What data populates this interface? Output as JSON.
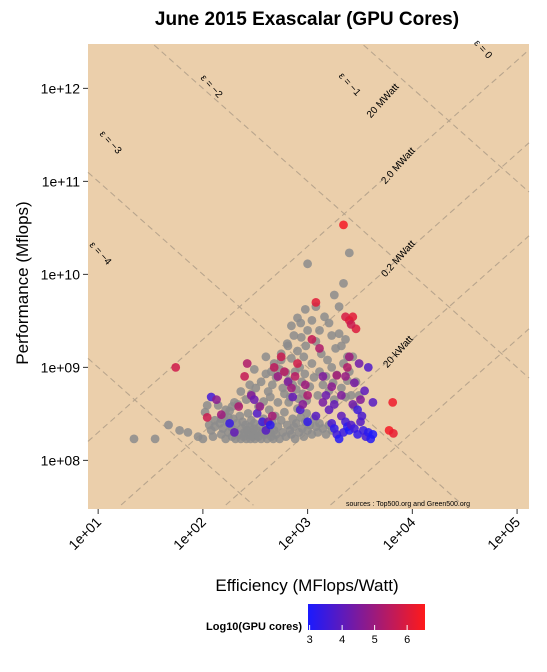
{
  "chart_data": {
    "type": "scatter",
    "title": "June 2015 Exascalar (GPU Cores)",
    "xlabel": "Efficiency (MFlops/Watt)",
    "ylabel": "Performance (Mflops)",
    "x_scale": "log10",
    "y_scale": "log10",
    "xlim": [
      8,
      130000
    ],
    "ylim": [
      30000000,
      3000000000000
    ],
    "x_ticks": [
      "1e+01",
      "1e+02",
      "1e+03",
      "1e+04",
      "1e+05"
    ],
    "x_tick_values": [
      10,
      100,
      1000,
      10000,
      100000
    ],
    "y_ticks": [
      "1e+08",
      "1e+09",
      "1e+10",
      "1e+11",
      "1e+12"
    ],
    "y_tick_values": [
      100000000,
      1000000000,
      10000000000,
      100000000000,
      1000000000000
    ],
    "grid": false,
    "background": "#ebcfab",
    "source_note": "sources : Top500.org and Green500.org",
    "exascalar_lines": [
      {
        "label": "ε = −4",
        "value": -4
      },
      {
        "label": "ε = −3",
        "value": -3
      },
      {
        "label": "ε = −2",
        "value": -2
      },
      {
        "label": "ε = −1",
        "value": -1
      },
      {
        "label": "ε = 0",
        "value": 0
      }
    ],
    "power_lines": [
      {
        "label": "20 kWatt",
        "watts": 20000
      },
      {
        "label": "0.2 MWatt",
        "watts": 200000
      },
      {
        "label": "2.0 MWatt",
        "watts": 2000000
      },
      {
        "label": "20 MWatt",
        "watts": 20000000
      }
    ],
    "legend": {
      "title": "Log10(GPU cores)",
      "position": "bottom",
      "ticks": [
        3,
        4,
        5,
        6
      ],
      "range": [
        2.95,
        6.55
      ],
      "low_color": "#1a1aff",
      "high_color": "#ff1a1a"
    },
    "no_gpu_color": "#8c8c8c",
    "points_no_gpu": [
      [
        22,
        170000000
      ],
      [
        35,
        170000000
      ],
      [
        47,
        240000000
      ],
      [
        60,
        210000000
      ],
      [
        72,
        200000000
      ],
      [
        90,
        180000000
      ],
      [
        100,
        170000000
      ],
      [
        105,
        330000000
      ],
      [
        110,
        390000000
      ],
      [
        115,
        240000000
      ],
      [
        120,
        210000000
      ],
      [
        125,
        180000000
      ],
      [
        130,
        270000000
      ],
      [
        140,
        390000000
      ],
      [
        145,
        250000000
      ],
      [
        150,
        190000000
      ],
      [
        155,
        220000000
      ],
      [
        160,
        300000000
      ],
      [
        165,
        170000000
      ],
      [
        170,
        260000000
      ],
      [
        175,
        200000000
      ],
      [
        180,
        340000000
      ],
      [
        185,
        230000000
      ],
      [
        190,
        180000000
      ],
      [
        195,
        280000000
      ],
      [
        200,
        210000000
      ],
      [
        205,
        170000000
      ],
      [
        210,
        250000000
      ],
      [
        215,
        400000000
      ],
      [
        220,
        190000000
      ],
      [
        225,
        300000000
      ],
      [
        230,
        170000000
      ],
      [
        235,
        220000000
      ],
      [
        240,
        260000000
      ],
      [
        245,
        180000000
      ],
      [
        250,
        200000000
      ],
      [
        255,
        240000000
      ],
      [
        260,
        170000000
      ],
      [
        265,
        210000000
      ],
      [
        270,
        320000000
      ],
      [
        275,
        190000000
      ],
      [
        280,
        230000000
      ],
      [
        285,
        170000000
      ],
      [
        290,
        270000000
      ],
      [
        295,
        200000000
      ],
      [
        300,
        180000000
      ],
      [
        305,
        220000000
      ],
      [
        310,
        250000000
      ],
      [
        315,
        170000000
      ],
      [
        320,
        190000000
      ],
      [
        330,
        210000000
      ],
      [
        340,
        180000000
      ],
      [
        350,
        230000000
      ],
      [
        360,
        170000000
      ],
      [
        370,
        200000000
      ],
      [
        380,
        280000000
      ],
      [
        390,
        190000000
      ],
      [
        400,
        240000000
      ],
      [
        410,
        170000000
      ],
      [
        420,
        220000000
      ],
      [
        430,
        350000000
      ],
      [
        440,
        200000000
      ],
      [
        450,
        180000000
      ],
      [
        460,
        260000000
      ],
      [
        470,
        170000000
      ],
      [
        480,
        210000000
      ],
      [
        490,
        300000000
      ],
      [
        500,
        190000000
      ],
      [
        520,
        230000000
      ],
      [
        540,
        170000000
      ],
      [
        560,
        270000000
      ],
      [
        580,
        200000000
      ],
      [
        600,
        330000000
      ],
      [
        620,
        180000000
      ],
      [
        640,
        240000000
      ],
      [
        660,
        420000000
      ],
      [
        680,
        210000000
      ],
      [
        700,
        190000000
      ],
      [
        720,
        280000000
      ],
      [
        740,
        230000000
      ],
      [
        760,
        170000000
      ],
      [
        780,
        250000000
      ],
      [
        800,
        360000000
      ],
      [
        830,
        200000000
      ],
      [
        860,
        290000000
      ],
      [
        890,
        220000000
      ],
      [
        920,
        180000000
      ],
      [
        950,
        260000000
      ],
      [
        980,
        320000000
      ],
      [
        1000,
        210000000
      ],
      [
        1050,
        240000000
      ],
      [
        1100,
        190000000
      ],
      [
        1150,
        280000000
      ],
      [
        1200,
        230000000
      ],
      [
        1250,
        200000000
      ],
      [
        1300,
        250000000
      ],
      [
        1400,
        220000000
      ],
      [
        1500,
        190000000
      ],
      [
        1600,
        240000000
      ],
      [
        1700,
        210000000
      ],
      [
        260,
        450000000
      ],
      [
        290,
        520000000
      ],
      [
        320,
        600000000
      ],
      [
        340,
        380000000
      ],
      [
        360,
        700000000
      ],
      [
        380,
        430000000
      ],
      [
        400,
        850000000
      ],
      [
        420,
        550000000
      ],
      [
        440,
        480000000
      ],
      [
        460,
        650000000
      ],
      [
        480,
        1100000000
      ],
      [
        500,
        780000000
      ],
      [
        520,
        420000000
      ],
      [
        540,
        950000000
      ],
      [
        560,
        1400000000
      ],
      [
        580,
        600000000
      ],
      [
        600,
        520000000
      ],
      [
        620,
        880000000
      ],
      [
        640,
        1800000000
      ],
      [
        660,
        720000000
      ],
      [
        680,
        480000000
      ],
      [
        700,
        1250000000
      ],
      [
        720,
        650000000
      ],
      [
        740,
        2200000000
      ],
      [
        760,
        900000000
      ],
      [
        780,
        580000000
      ],
      [
        800,
        1500000000
      ],
      [
        820,
        460000000
      ],
      [
        840,
        1000000000
      ],
      [
        860,
        3000000000
      ],
      [
        880,
        700000000
      ],
      [
        900,
        520000000
      ],
      [
        920,
        1300000000
      ],
      [
        940,
        850000000
      ],
      [
        960,
        1700000000
      ],
      [
        980,
        440000000
      ],
      [
        1000,
        2500000000
      ],
      [
        1050,
        620000000
      ],
      [
        1100,
        1100000000
      ],
      [
        1150,
        780000000
      ],
      [
        1200,
        1900000000
      ],
      [
        1250,
        500000000
      ],
      [
        1300,
        900000000
      ],
      [
        1350,
        1400000000
      ],
      [
        1400,
        650000000
      ],
      [
        1450,
        3500000000
      ],
      [
        1500,
        800000000
      ],
      [
        1550,
        1200000000
      ],
      [
        1600,
        560000000
      ],
      [
        1700,
        1000000000
      ],
      [
        1750,
        680000000
      ],
      [
        1800,
        450000000
      ],
      [
        1850,
        1600000000
      ],
      [
        1900,
        830000000
      ],
      [
        2000,
        2300000000
      ],
      [
        2100,
        600000000
      ],
      [
        2200,
        1100000000
      ],
      [
        2300,
        480000000
      ],
      [
        2400,
        720000000
      ],
      [
        2500,
        900000000
      ],
      [
        2600,
        500000000
      ],
      [
        2700,
        1300000000
      ],
      [
        2800,
        380000000
      ],
      [
        2300,
        2000000000
      ],
      [
        2000,
        4500000000
      ],
      [
        1600,
        3000000000
      ],
      [
        1800,
        6000000000
      ],
      [
        2200,
        8000000000
      ],
      [
        2500,
        17000000000
      ],
      [
        1300,
        2500000000
      ],
      [
        1100,
        3200000000
      ],
      [
        950,
        4200000000
      ],
      [
        800,
        3400000000
      ],
      [
        700,
        2800000000
      ],
      [
        1200,
        4500000000
      ],
      [
        870,
        2100000000
      ],
      [
        1000,
        13000000000
      ],
      [
        650,
        1700000000
      ],
      [
        560,
        1200000000
      ],
      [
        450,
        900000000
      ],
      [
        400,
        1300000000
      ],
      [
        310,
        950000000
      ],
      [
        280,
        650000000
      ],
      [
        230,
        550000000
      ],
      [
        200,
        420000000
      ],
      [
        190,
        380000000
      ],
      [
        175,
        290000000
      ],
      [
        165,
        350000000
      ],
      [
        150,
        280000000
      ],
      [
        130,
        230000000
      ],
      [
        2100,
        1700000000
      ],
      [
        2400,
        1300000000
      ],
      [
        1700,
        2200000000
      ],
      [
        2900,
        700000000
      ],
      [
        3100,
        500000000
      ]
    ],
    "points_gpu": [
      [
        55,
        1000000000,
        5.8
      ],
      [
        120,
        480000000,
        3.6
      ],
      [
        135,
        450000000,
        4.7
      ],
      [
        150,
        310000000,
        5.0
      ],
      [
        110,
        290000000,
        5.7
      ],
      [
        180,
        250000000,
        3.4
      ],
      [
        200,
        200000000,
        4.1
      ],
      [
        220,
        380000000,
        5.2
      ],
      [
        250,
        800000000,
        5.6
      ],
      [
        265,
        1100000000,
        5.3
      ],
      [
        290,
        500000000,
        4.6
      ],
      [
        310,
        450000000,
        4.2
      ],
      [
        330,
        320000000,
        3.8
      ],
      [
        350,
        380000000,
        4.8
      ],
      [
        370,
        260000000,
        3.5
      ],
      [
        400,
        210000000,
        3.9
      ],
      [
        420,
        260000000,
        4.4
      ],
      [
        440,
        240000000,
        3.2
      ],
      [
        460,
        300000000,
        5.1
      ],
      [
        480,
        1000000000,
        5.5
      ],
      [
        520,
        800000000,
        4.9
      ],
      [
        560,
        1300000000,
        5.7
      ],
      [
        600,
        900000000,
        5.4
      ],
      [
        650,
        700000000,
        4.5
      ],
      [
        700,
        600000000,
        5.0
      ],
      [
        720,
        480000000,
        4.1
      ],
      [
        760,
        800000000,
        5.4
      ],
      [
        800,
        1100000000,
        5.8
      ],
      [
        850,
        350000000,
        3.7
      ],
      [
        900,
        400000000,
        4.6
      ],
      [
        950,
        650000000,
        5.0
      ],
      [
        1000,
        500000000,
        5.2
      ],
      [
        1100,
        2000000000,
        5.6
      ],
      [
        1200,
        5000000000,
        6.1
      ],
      [
        1300,
        1600000000,
        5.3
      ],
      [
        1400,
        800000000,
        4.5
      ],
      [
        1500,
        500000000,
        4.2
      ],
      [
        1600,
        350000000,
        4.0
      ],
      [
        1700,
        250000000,
        3.7
      ],
      [
        1800,
        220000000,
        3.3
      ],
      [
        1900,
        190000000,
        3.5
      ],
      [
        2000,
        170000000,
        3.1
      ],
      [
        2100,
        300000000,
        4.0
      ],
      [
        2200,
        200000000,
        3.4
      ],
      [
        2300,
        260000000,
        3.6
      ],
      [
        2400,
        230000000,
        3.2
      ],
      [
        2500,
        210000000,
        3.0
      ],
      [
        2600,
        240000000,
        3.8
      ],
      [
        2700,
        400000000,
        4.3
      ],
      [
        2800,
        220000000,
        3.5
      ],
      [
        3000,
        190000000,
        3.3
      ],
      [
        3200,
        260000000,
        3.9
      ],
      [
        3400,
        210000000,
        3.4
      ],
      [
        3600,
        180000000,
        3.6
      ],
      [
        3800,
        200000000,
        3.2
      ],
      [
        4000,
        170000000,
        3.1
      ],
      [
        4200,
        190000000,
        3.0
      ],
      [
        2200,
        34000000000,
        6.4
      ],
      [
        2300,
        3500000000,
        5.9
      ],
      [
        2500,
        3200000000,
        6.0
      ],
      [
        2700,
        3500000000,
        6.1
      ],
      [
        2900,
        2600000000,
        6.0
      ],
      [
        2600,
        2900000000,
        5.7
      ],
      [
        2400,
        1000000000,
        5.3
      ],
      [
        2500,
        1300000000,
        5.0
      ],
      [
        2300,
        800000000,
        4.9
      ],
      [
        3100,
        1100000000,
        4.3
      ],
      [
        3500,
        560000000,
        4.0
      ],
      [
        3800,
        1000000000,
        3.8
      ],
      [
        3200,
        450000000,
        4.6
      ],
      [
        2800,
        680000000,
        4.4
      ],
      [
        4200,
        420000000,
        3.9
      ],
      [
        3000,
        350000000,
        3.5
      ],
      [
        3300,
        300000000,
        3.7
      ],
      [
        6500,
        420000000,
        6.3
      ],
      [
        6000,
        210000000,
        6.4
      ],
      [
        6600,
        195000000,
        6.2
      ],
      [
        1700,
        620000000,
        4.7
      ],
      [
        1900,
        820000000,
        5.1
      ],
      [
        1400,
        420000000,
        4.4
      ],
      [
        1200,
        300000000,
        3.9
      ],
      [
        1000,
        260000000,
        3.3
      ],
      [
        2100,
        500000000,
        4.5
      ],
      [
        1800,
        400000000,
        4.1
      ]
    ]
  }
}
